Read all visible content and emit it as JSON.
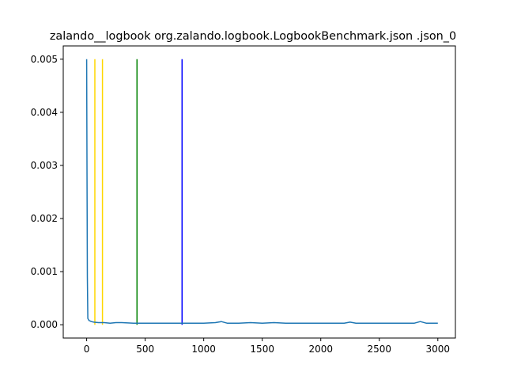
{
  "chart_data": {
    "type": "line",
    "title": "zalando__logbook org.zalando.logbook.LogbookBenchmark.json .json_0",
    "xlabel": "",
    "ylabel": "",
    "xlim": [
      -200,
      3150
    ],
    "ylim": [
      -0.00025,
      0.00525
    ],
    "x_ticks": [
      0,
      500,
      1000,
      1500,
      2000,
      2500,
      3000
    ],
    "x_tick_labels": [
      "0",
      "500",
      "1000",
      "1500",
      "2000",
      "2500",
      "3000"
    ],
    "y_ticks": [
      0.0,
      0.001,
      0.002,
      0.003,
      0.004,
      0.005
    ],
    "y_tick_labels": [
      "0.000",
      "0.001",
      "0.002",
      "0.003",
      "0.004",
      "0.005"
    ],
    "grid": false,
    "series": [
      {
        "color": "#1f77b4",
        "points": [
          [
            0,
            0.005
          ],
          [
            3,
            0.0028
          ],
          [
            6,
            0.0009
          ],
          [
            10,
            0.00012
          ],
          [
            20,
            8e-05
          ],
          [
            40,
            6e-05
          ],
          [
            60,
            5e-05
          ],
          [
            100,
            4e-05
          ],
          [
            150,
            4e-05
          ],
          [
            200,
            3e-05
          ],
          [
            250,
            4e-05
          ],
          [
            300,
            4e-05
          ],
          [
            400,
            3e-05
          ],
          [
            500,
            3e-05
          ],
          [
            600,
            3e-05
          ],
          [
            700,
            3e-05
          ],
          [
            800,
            3e-05
          ],
          [
            900,
            3e-05
          ],
          [
            1000,
            3e-05
          ],
          [
            1100,
            4e-05
          ],
          [
            1150,
            6e-05
          ],
          [
            1200,
            3e-05
          ],
          [
            1300,
            3e-05
          ],
          [
            1400,
            4e-05
          ],
          [
            1500,
            3e-05
          ],
          [
            1600,
            4e-05
          ],
          [
            1700,
            3e-05
          ],
          [
            1800,
            3e-05
          ],
          [
            1900,
            3e-05
          ],
          [
            2000,
            3e-05
          ],
          [
            2100,
            3e-05
          ],
          [
            2200,
            3e-05
          ],
          [
            2250,
            5e-05
          ],
          [
            2300,
            3e-05
          ],
          [
            2400,
            3e-05
          ],
          [
            2500,
            3e-05
          ],
          [
            2600,
            3e-05
          ],
          [
            2700,
            3e-05
          ],
          [
            2800,
            3e-05
          ],
          [
            2850,
            6e-05
          ],
          [
            2900,
            3e-05
          ],
          [
            3000,
            3e-05
          ]
        ]
      }
    ],
    "vertical_lines": [
      {
        "x": 70,
        "color": "#ffd700",
        "ymin": 0.0,
        "ymax": 0.005
      },
      {
        "x": 135,
        "color": "#ffd700",
        "ymin": 0.0,
        "ymax": 0.005
      },
      {
        "x": 430,
        "color": "#008000",
        "ymin": 0.0,
        "ymax": 0.005
      },
      {
        "x": 815,
        "color": "#0000ff",
        "ymin": 0.0,
        "ymax": 0.005
      }
    ]
  }
}
